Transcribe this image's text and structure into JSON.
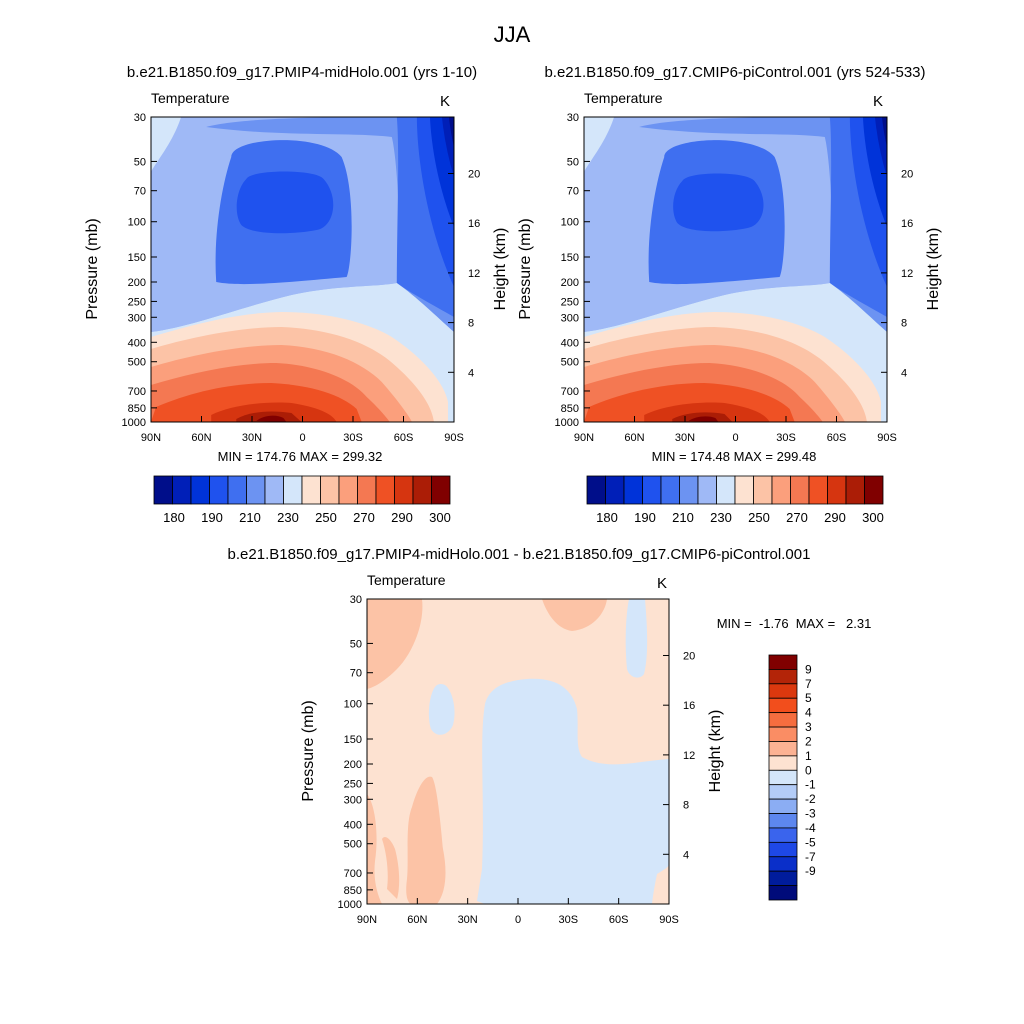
{
  "figure_title": "JJA",
  "chart_data": [
    {
      "type": "heatmap",
      "title": "b.e21.B1850.f09_g17.PMIP4-midHolo.001 (yrs 1-10)",
      "variable": "Temperature",
      "units": "K",
      "xlabel": "",
      "ylabel": "Pressure (mb)",
      "ylabel_right": "Height (km)",
      "xticks": [
        "90N",
        "60N",
        "30N",
        "0",
        "30S",
        "60S",
        "90S"
      ],
      "yticks": [
        30,
        50,
        70,
        100,
        150,
        200,
        250,
        300,
        400,
        500,
        700,
        850,
        1000
      ],
      "height_ticks": [
        4,
        8,
        12,
        16,
        20
      ],
      "ylim": [
        1000,
        30
      ],
      "stats": "MIN = 174.76  MAX = 299.32",
      "min": 174.76,
      "max": 299.32,
      "colorbar_ticks": [
        "180",
        "190",
        "210",
        "230",
        "250",
        "270",
        "290",
        "300"
      ]
    },
    {
      "type": "heatmap",
      "title": "b.e21.B1850.f09_g17.CMIP6-piControl.001 (yrs 524-533)",
      "variable": "Temperature",
      "units": "K",
      "xlabel": "",
      "ylabel": "Pressure (mb)",
      "ylabel_right": "Height (km)",
      "xticks": [
        "90N",
        "60N",
        "30N",
        "0",
        "30S",
        "60S",
        "90S"
      ],
      "yticks": [
        30,
        50,
        70,
        100,
        150,
        200,
        250,
        300,
        400,
        500,
        700,
        850,
        1000
      ],
      "height_ticks": [
        4,
        8,
        12,
        16,
        20
      ],
      "ylim": [
        1000,
        30
      ],
      "stats": "MIN = 174.48  MAX = 299.48",
      "min": 174.48,
      "max": 299.48,
      "colorbar_ticks": [
        "180",
        "190",
        "210",
        "230",
        "250",
        "270",
        "290",
        "300"
      ]
    },
    {
      "type": "heatmap",
      "title": "b.e21.B1850.f09_g17.PMIP4-midHolo.001 - b.e21.B1850.f09_g17.CMIP6-piControl.001",
      "variable": "Temperature",
      "units": "K",
      "xlabel": "",
      "ylabel": "Pressure (mb)",
      "ylabel_right": "Height (km)",
      "xticks": [
        "90N",
        "60N",
        "30N",
        "0",
        "30S",
        "60S",
        "90S"
      ],
      "yticks": [
        30,
        50,
        70,
        100,
        150,
        200,
        250,
        300,
        400,
        500,
        700,
        850,
        1000
      ],
      "height_ticks": [
        4,
        8,
        12,
        16,
        20
      ],
      "ylim": [
        1000,
        30
      ],
      "stats": "MIN =  -1.76  MAX =   2.31",
      "min": -1.76,
      "max": 2.31,
      "colorbar_ticks": [
        "9",
        "7",
        "5",
        "4",
        "3",
        "2",
        "1",
        "0",
        "-1",
        "-2",
        "-3",
        "-4",
        "-5",
        "-7",
        "-9"
      ]
    }
  ],
  "colors": {
    "abs_scale": [
      "#000e8a",
      "#001fb8",
      "#0033d9",
      "#1f52ee",
      "#3f6ff0",
      "#6c93f2",
      "#9fb9f6",
      "#d4e6fa",
      "#fde2d1",
      "#fcc3a6",
      "#fb9f7c",
      "#f47852",
      "#ef5124",
      "#d63510",
      "#ab1d06",
      "#800000"
    ],
    "diff_scale": [
      "#800000",
      "#b32408",
      "#db380e",
      "#f24e1c",
      "#f56d3f",
      "#fa8d64",
      "#fcb293",
      "#fde2d1",
      "#d4e6fa",
      "#b3ccf7",
      "#8badf3",
      "#5d87ef",
      "#3a64ed",
      "#1e48e6",
      "#0a2fc9",
      "#001c9c",
      "#000b7a"
    ],
    "axis": "#000000"
  }
}
